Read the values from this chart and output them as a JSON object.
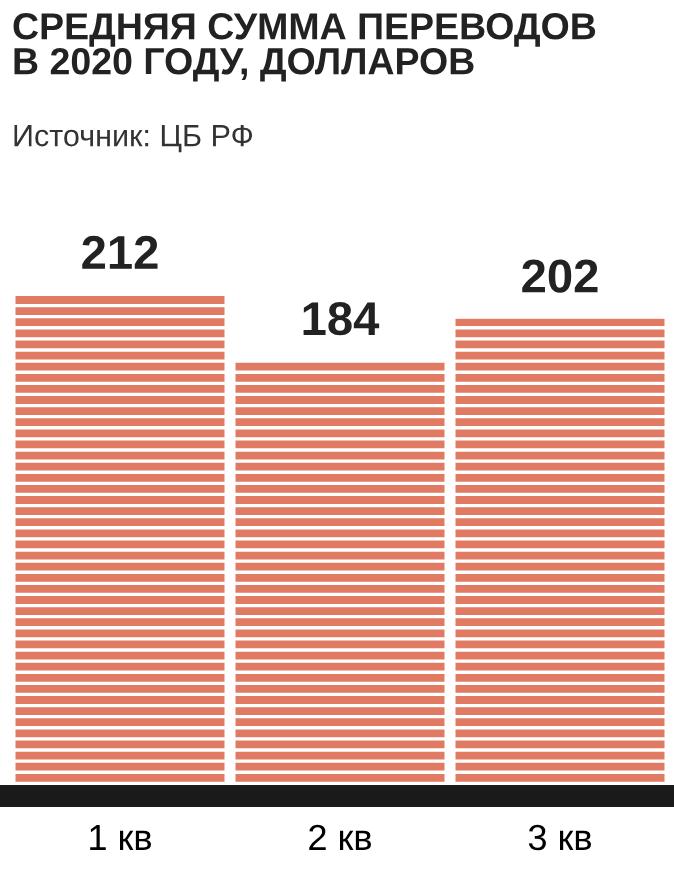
{
  "chart_data": {
    "type": "bar",
    "title": "СРЕДНЯЯ СУММА ПЕРЕВОДОВ\nВ 2020 ГОДУ, ДОЛЛАРОВ",
    "annotations": [
      "Источник: ЦБ РФ"
    ],
    "categories": [
      "1 кв",
      "2 кв",
      "3 кв"
    ],
    "values": [
      212,
      184,
      202
    ],
    "color": "#e07a62",
    "data_labels": true,
    "grid": false,
    "legend": false
  }
}
